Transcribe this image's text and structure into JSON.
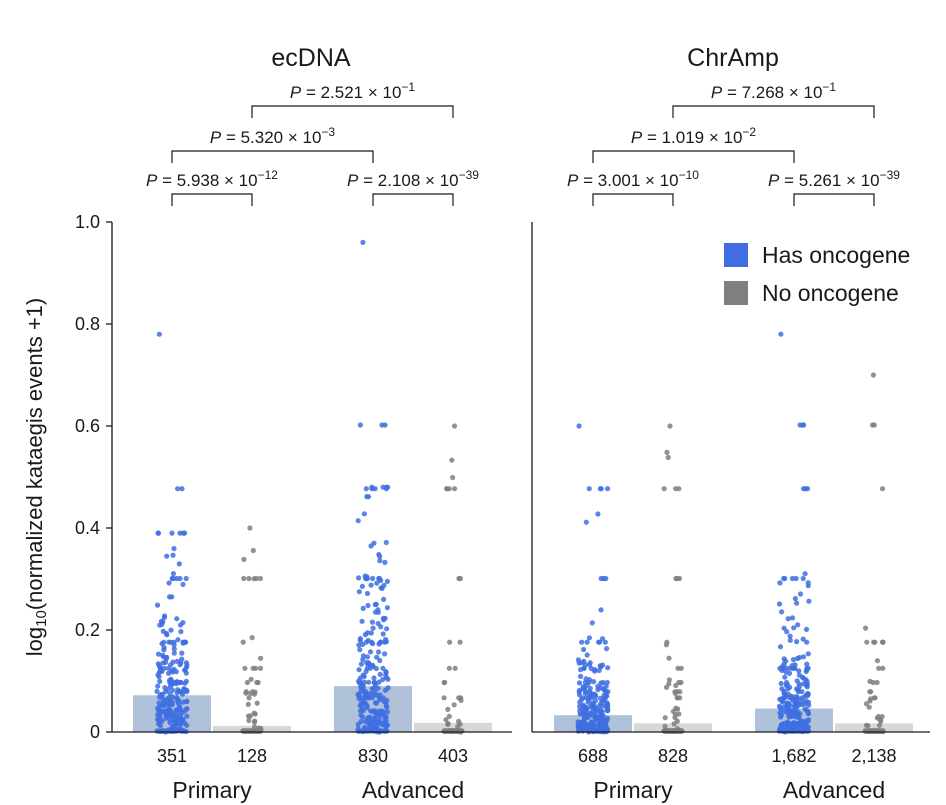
{
  "chart_data": {
    "type": "scatter",
    "ylabel": {
      "prefix": "log",
      "sub": "10",
      "rest": "(normalized kataegis events +1)"
    },
    "ylim": [
      0,
      1.0
    ],
    "yticks": [
      "0",
      "0.2",
      "0.4",
      "0.6",
      "0.8",
      "1.0"
    ],
    "ytick_values": [
      0,
      0.2,
      0.4,
      0.6,
      0.8,
      1.0
    ],
    "legend": [
      {
        "label": "Has oncogene",
        "color": "#3e6ee0"
      },
      {
        "label": "No oncogene",
        "color": "#7f7f7f"
      }
    ],
    "colors": {
      "has_points": "#3e6ee0",
      "no_points": "#7f7f7f",
      "has_bar": "#b0c1da",
      "no_bar": "#d8d8d8",
      "axis": "#1a1a1a"
    },
    "panels": [
      {
        "title": "ecDNA",
        "groups": [
          {
            "name": "Primary",
            "series": [
              {
                "oncogene": "has",
                "n": "351",
                "mean": 0.072,
                "max": 0.78
              },
              {
                "oncogene": "no",
                "n": "128",
                "mean": 0.012,
                "max": 0.4
              }
            ]
          },
          {
            "name": "Advanced",
            "series": [
              {
                "oncogene": "has",
                "n": "830",
                "mean": 0.09,
                "max": 0.96
              },
              {
                "oncogene": "no",
                "n": "403",
                "mean": 0.018,
                "max": 0.6
              }
            ]
          }
        ],
        "comparisons": [
          {
            "pair": [
              "Primary has",
              "Primary no"
            ],
            "mant": "5.938",
            "exp": "−12"
          },
          {
            "pair": [
              "Advanced has",
              "Advanced no"
            ],
            "mant": "2.108",
            "exp": "−39"
          },
          {
            "pair": [
              "Primary has",
              "Advanced has"
            ],
            "mant": "5.320",
            "exp": "−3"
          },
          {
            "pair": [
              "Primary no",
              "Advanced no"
            ],
            "mant": "2.521",
            "exp": "−1"
          }
        ]
      },
      {
        "title": "ChrAmp",
        "groups": [
          {
            "name": "Primary",
            "series": [
              {
                "oncogene": "has",
                "n": "688",
                "mean": 0.033,
                "max": 0.6
              },
              {
                "oncogene": "no",
                "n": "828",
                "mean": 0.017,
                "max": 0.6
              }
            ]
          },
          {
            "name": "Advanced",
            "series": [
              {
                "oncogene": "has",
                "n": "1,682",
                "mean": 0.046,
                "max": 0.78
              },
              {
                "oncogene": "no",
                "n": "2,138",
                "mean": 0.017,
                "max": 0.7
              }
            ]
          }
        ],
        "comparisons": [
          {
            "pair": [
              "Primary has",
              "Primary no"
            ],
            "mant": "3.001",
            "exp": "−10"
          },
          {
            "pair": [
              "Advanced has",
              "Advanced no"
            ],
            "mant": "5.261",
            "exp": "−39"
          },
          {
            "pair": [
              "Primary has",
              "Advanced has"
            ],
            "mant": "1.019",
            "exp": "−2"
          },
          {
            "pair": [
              "Primary no",
              "Advanced no"
            ],
            "mant": "7.268",
            "exp": "−1"
          }
        ]
      }
    ],
    "p_prefix": "P = ",
    "p_times": " × 10"
  }
}
